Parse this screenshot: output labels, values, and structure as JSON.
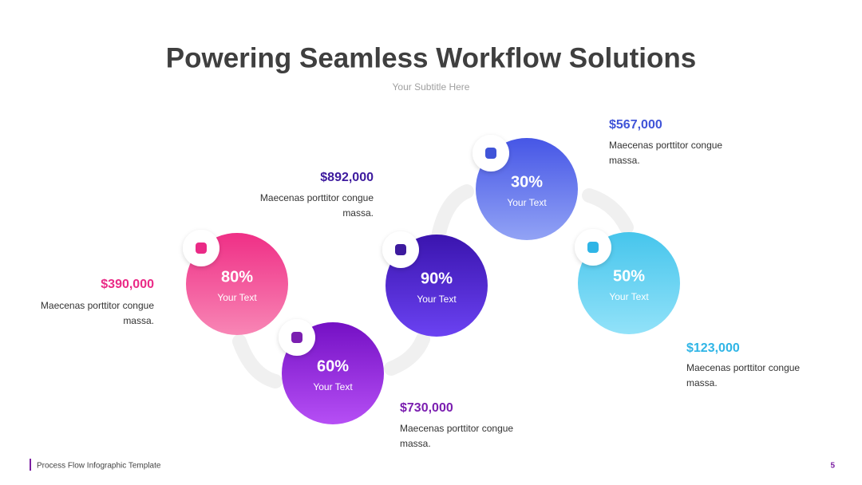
{
  "header": {
    "title": "Powering Seamless Workflow Solutions",
    "subtitle": "Your Subtitle Here"
  },
  "steps": [
    {
      "percent": "80%",
      "label": "Your Text",
      "amount": "$390,000",
      "description": [
        "Maecenas porttitor congue",
        "massa."
      ]
    },
    {
      "percent": "60%",
      "label": "Your Text",
      "amount": "$730,000",
      "description": [
        "Maecenas porttitor congue",
        "massa."
      ]
    },
    {
      "percent": "90%",
      "label": "Your Text",
      "amount": "$892,000",
      "description": [
        "Maecenas porttitor congue",
        "massa."
      ]
    },
    {
      "percent": "30%",
      "label": "Your Text",
      "amount": "$567,000",
      "description": [
        "Maecenas porttitor congue",
        "massa."
      ]
    },
    {
      "percent": "50%",
      "label": "Your Text",
      "amount": "$123,000",
      "description": [
        "Maecenas porttitor congue",
        "massa."
      ]
    }
  ],
  "footer": {
    "text": "Process Flow Infographic Template",
    "page": "5"
  }
}
